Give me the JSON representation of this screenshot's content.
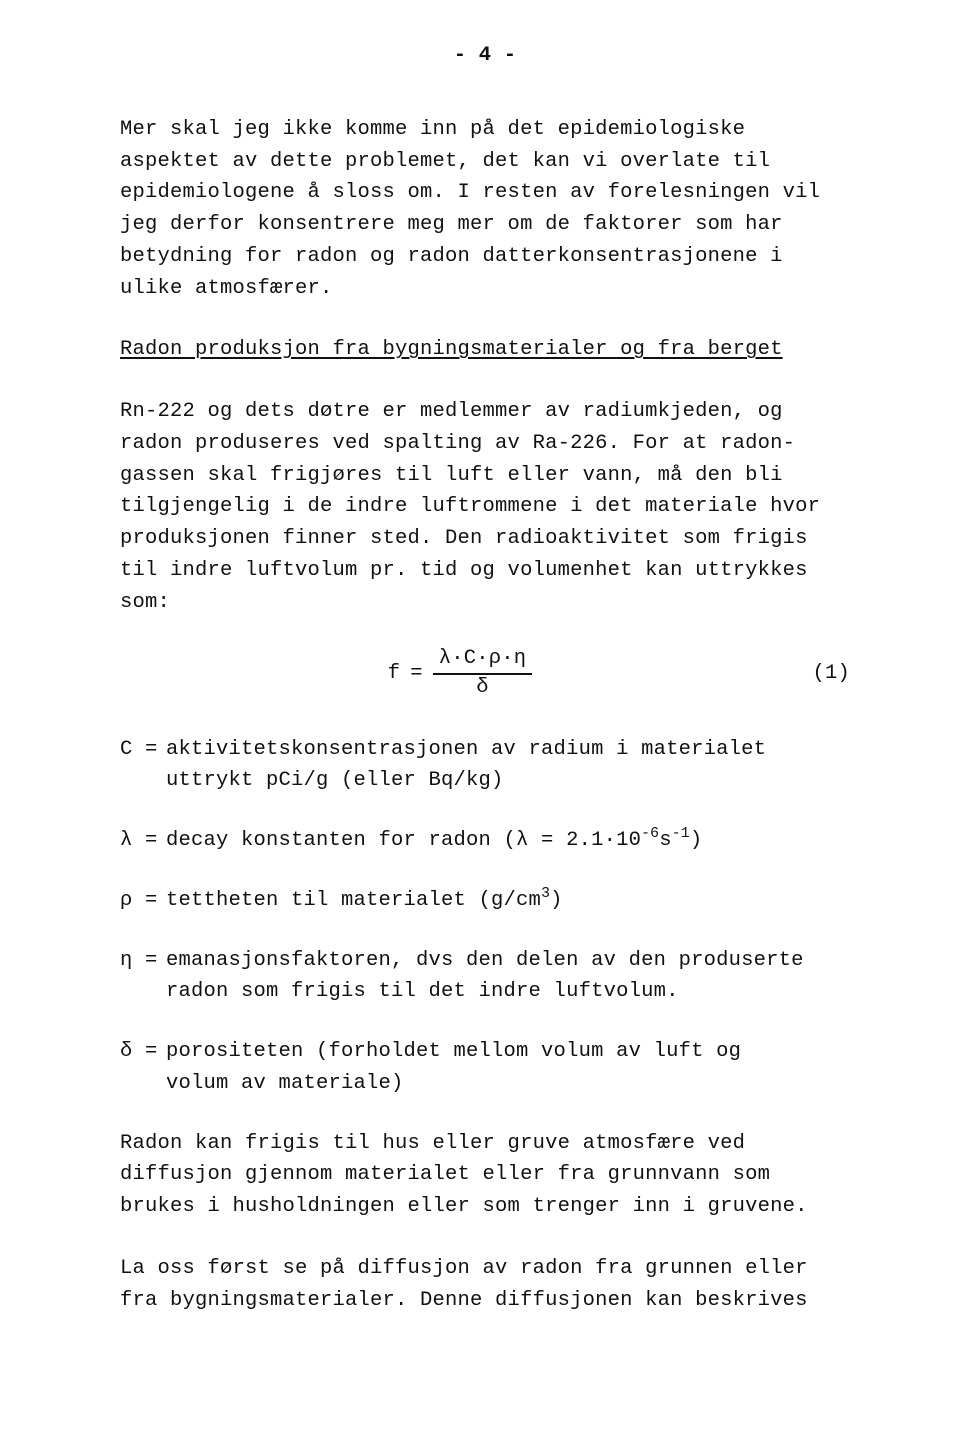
{
  "page_number_label": "- 4 -",
  "para1": "Mer skal jeg ikke komme inn på det epidemiologiske aspektet av dette problemet, det kan vi overlate til epidemiologene å sloss om. I resten av forelesningen vil jeg derfor konsentrere meg mer om de faktorer som har betydning for radon og radon datterkonsentrasjonene i ulike atmosfærer.",
  "section_title": "Radon produksjon fra bygningsmaterialer og fra berget",
  "para2": "Rn-222 og dets døtre er medlemmer av radiumkjeden, og radon produseres ved spalting av Ra-226. For at radon­gassen skal frigjøres til luft eller vann, må den bli tilgjengelig i de indre luftrommene i det materiale hvor produksjonen finner sted. Den radioaktivitet som frigis til indre luftvolum pr. tid og volumenhet kan uttrykkes som:",
  "equation": {
    "lhs": "f",
    "equals": "=",
    "numerator": "λ·C·ρ·η",
    "denominator": "δ",
    "label": "(1)"
  },
  "defs": {
    "C": {
      "sym": "C =",
      "txta": "aktivitetskonsentrasjonen av radium i materialet",
      "txtb": "uttrykt pCi/g (eller Bq/kg)"
    },
    "lambda": {
      "sym": "λ =",
      "pre": "decay konstanten for radon (λ = 2.1·10",
      "sup1": "-6",
      "mid": "s",
      "sup2": "-1",
      "post": ")"
    },
    "rho": {
      "sym": "ρ =",
      "pre": "tettheten til materialet (g/cm",
      "sup": "3",
      "post": ")"
    },
    "eta": {
      "sym": "η =",
      "txta": "emanasjonsfaktoren, dvs den delen av den produserte",
      "txtb": "radon som frigis til det indre luftvolum."
    },
    "delta": {
      "sym": "δ =",
      "txta": "porositeten (forholdet mellom volum av luft og",
      "txtb": "volum av materiale)"
    }
  },
  "para3": "Radon kan frigis til hus eller gruve atmosfære ved diffusjon  gjennom materialet eller fra grunnvann som brukes i husholdningen eller som trenger inn i gruvene.",
  "para4": "La oss først se på diffusjon av radon fra grunnen eller fra bygningsmaterialer. Denne diffusjonen kan beskrives"
}
